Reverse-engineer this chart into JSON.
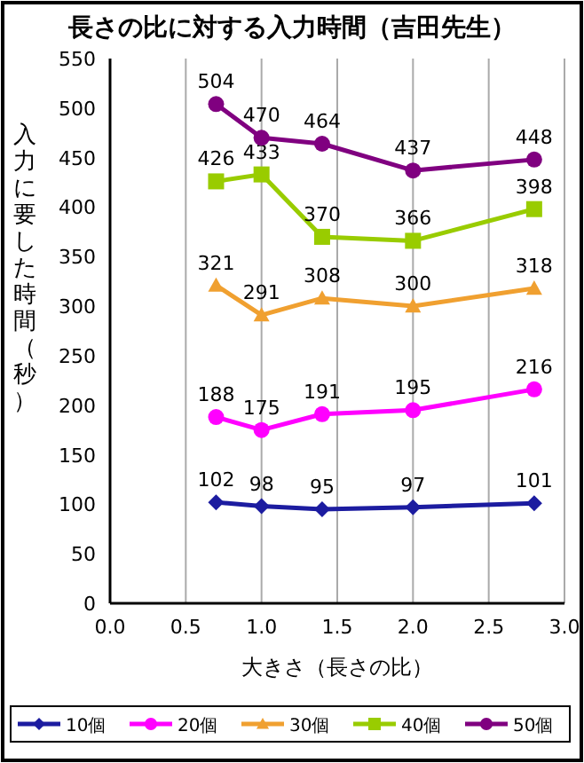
{
  "chart_data": {
    "type": "line",
    "title": "長さの比に対する入力時間（吉田先生）",
    "xlabel": "大きさ（長さの比）",
    "ylabel": "入力に要した時間（秒）",
    "x": [
      0.7,
      1.0,
      1.4,
      2.0,
      2.8
    ],
    "xlim": [
      0,
      3
    ],
    "xticks": [
      {
        "value": 0,
        "label": "0.0"
      },
      {
        "value": 0.5,
        "label": "0.5"
      },
      {
        "value": 1,
        "label": "1.0"
      },
      {
        "value": 1.5,
        "label": "1.5"
      },
      {
        "value": 2,
        "label": "2.0"
      },
      {
        "value": 2.5,
        "label": "2.5"
      },
      {
        "value": 3,
        "label": "3.0"
      }
    ],
    "ylim": [
      0,
      550
    ],
    "yticks": [
      0,
      50,
      100,
      150,
      200,
      250,
      300,
      350,
      400,
      450,
      500,
      550
    ],
    "grid": "x",
    "legend": "bottom",
    "data_labels": true,
    "line_style": "solid",
    "series": [
      {
        "name": "10個",
        "color": "#1c1ca0",
        "marker": "diamond",
        "values": [
          102,
          98,
          95,
          97,
          101
        ]
      },
      {
        "name": "20個",
        "color": "#ff00ff",
        "marker": "circle",
        "values": [
          188,
          175,
          191,
          195,
          216
        ]
      },
      {
        "name": "30個",
        "color": "#f0a030",
        "marker": "triangle",
        "values": [
          321,
          291,
          308,
          300,
          318
        ]
      },
      {
        "name": "40個",
        "color": "#99cc00",
        "marker": "square",
        "values": [
          426,
          433,
          370,
          366,
          398
        ]
      },
      {
        "name": "50個",
        "color": "#800080",
        "marker": "circle",
        "values": [
          504,
          470,
          464,
          437,
          448
        ]
      }
    ]
  }
}
